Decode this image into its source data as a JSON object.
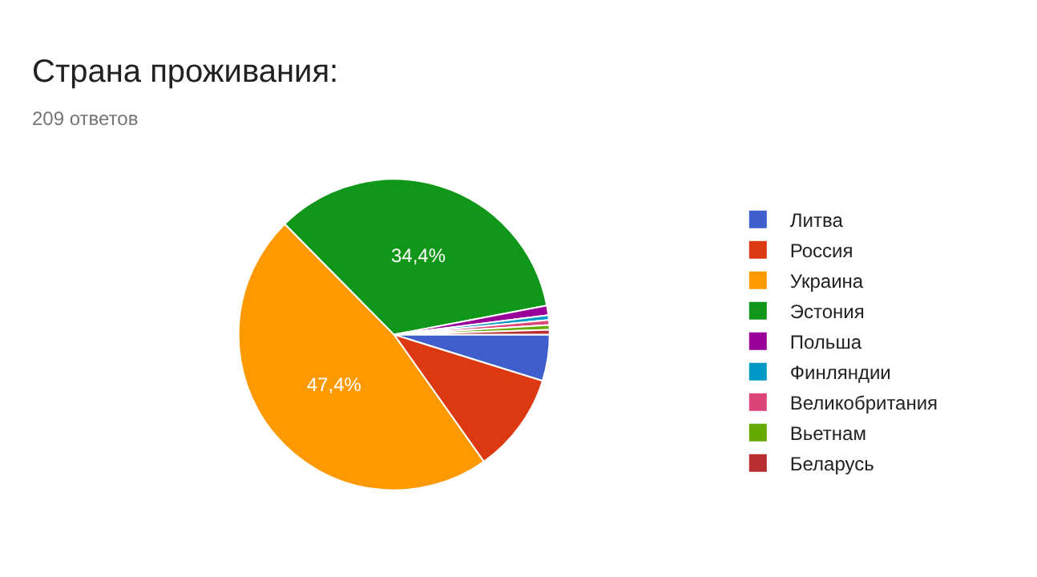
{
  "chart_data": {
    "type": "pie",
    "title": "Страна проживания:",
    "subtitle": "209 ответов",
    "categories": [
      "Литва",
      "Россия",
      "Украина",
      "Эстония",
      "Польша",
      "Финляндии",
      "Великобритания",
      "Вьетнам",
      "Беларусь"
    ],
    "values": [
      4.8,
      10.4,
      47.4,
      34.4,
      1,
      0.5,
      0.5,
      0.5,
      0.5
    ],
    "colors": [
      "#3f5fcc",
      "#dc3912",
      "#ff9900",
      "#109618",
      "#990099",
      "#0099c6",
      "#dd4477",
      "#66aa00",
      "#b82e2e"
    ],
    "value_labels": [
      null,
      null,
      "47,4%",
      "34,4%",
      null,
      null,
      null,
      null,
      null
    ],
    "legend": "right"
  }
}
